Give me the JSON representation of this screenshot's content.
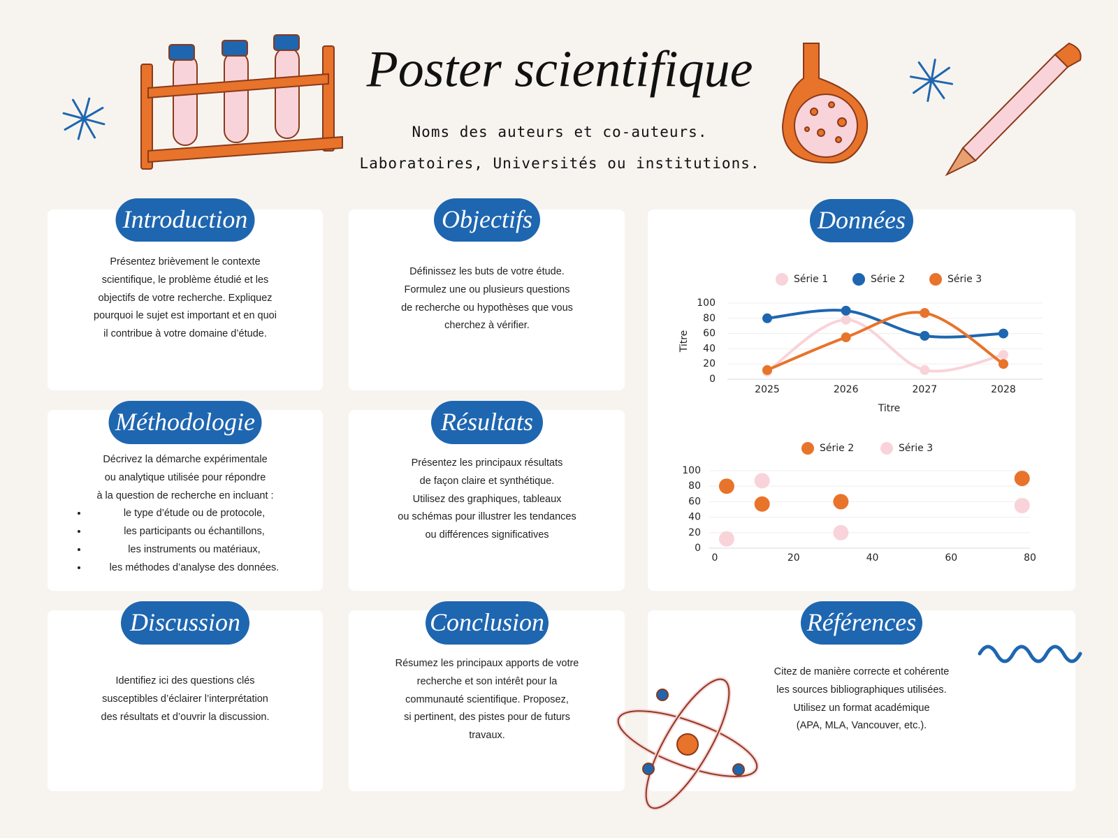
{
  "header": {
    "title": "Poster scientifique",
    "authors": "Noms des auteurs et co-auteurs.",
    "affiliations": "Laboratoires, Universités ou institutions."
  },
  "sections": [
    {
      "title": "Introduction",
      "lines": [
        "Présentez brièvement le contexte",
        "scientifique, le problème étudié et les",
        "objectifs de votre recherche. Expliquez",
        "pourquoi le sujet est important et en quoi",
        "il contribue à votre domaine d’étude."
      ]
    },
    {
      "title": "Objectifs",
      "lines": [
        "Définissez les buts de votre étude.",
        "Formulez une ou plusieurs questions",
        "de recherche ou hypothèses que vous",
        "cherchez à vérifier."
      ]
    },
    {
      "title": "Méthodologie",
      "lines": [
        "Décrivez la démarche expérimentale",
        "ou analytique utilisée pour répondre",
        "à la question de recherche en incluant :"
      ],
      "items": [
        "le type d’étude ou de protocole,",
        "les participants ou échantillons,",
        "les instruments ou matériaux,",
        "les méthodes d’analyse des données."
      ]
    },
    {
      "title": "Résultats",
      "lines": [
        "Présentez les principaux résultats",
        "de façon claire et synthétique.",
        "Utilisez des graphiques, tableaux",
        "ou schémas pour illustrer les tendances",
        "ou différences significatives"
      ]
    },
    {
      "title": "Discussion",
      "lines": [
        "Identifiez ici des questions clés",
        "susceptibles d’éclairer l’interprétation",
        "des résultats et d’ouvrir la discussion."
      ]
    },
    {
      "title": "Conclusion",
      "lines": [
        "Résumez les principaux apports de votre",
        "recherche et son intérêt pour la",
        "communauté scientifique. Proposez,",
        "si pertinent, des pistes pour de futurs",
        "travaux."
      ]
    },
    {
      "title": "Références",
      "lines": [
        "Citez de manière correcte et cohérente",
        "les sources bibliographiques utilisées.",
        "Utilisez un format académique",
        "(APA, MLA, Vancouver, etc.)."
      ]
    }
  ],
  "data_section": {
    "title": "Données"
  },
  "chart_data": [
    {
      "type": "line",
      "x_label": "Titre",
      "y_label": "Titre",
      "categories": [
        "2025",
        "2026",
        "2027",
        "2028"
      ],
      "series": [
        {
          "name": "Série 1",
          "color": "#f9d3da",
          "values": [
            10,
            78,
            12,
            32
          ]
        },
        {
          "name": "Série 2",
          "color": "#1e66b0",
          "values": [
            80,
            90,
            57,
            60
          ]
        },
        {
          "name": "Série 3",
          "color": "#e8732a",
          "values": [
            12,
            55,
            87,
            20
          ]
        }
      ],
      "ylim": [
        0,
        100
      ],
      "yticks": [
        0,
        20,
        40,
        60,
        80,
        100
      ],
      "grid": true,
      "smooth": true,
      "legend": "top"
    },
    {
      "type": "scatter",
      "x": [
        3,
        12,
        32,
        78
      ],
      "series": [
        {
          "name": "Série 2",
          "color": "#e8732a",
          "values": [
            80,
            57,
            60,
            90
          ]
        },
        {
          "name": "Série 3",
          "color": "#f9d3da",
          "values": [
            12,
            87,
            20,
            55
          ]
        }
      ],
      "xlim": [
        0,
        80
      ],
      "xticks": [
        0,
        20,
        40,
        60,
        80
      ],
      "ylim": [
        0,
        100
      ],
      "yticks": [
        0,
        20,
        40,
        60,
        80,
        100
      ],
      "grid": true,
      "legend": "top"
    }
  ]
}
